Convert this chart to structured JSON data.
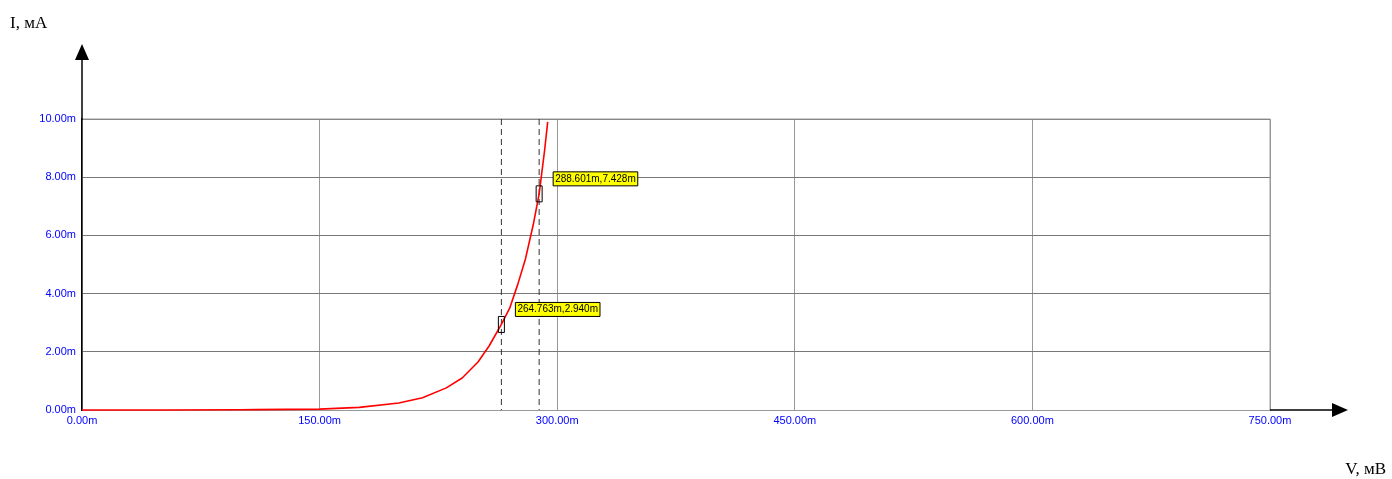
{
  "chart_data": {
    "type": "line",
    "xlabel": "V, мВ",
    "ylabel": "I, мА",
    "x": [
      0,
      50,
      100,
      150,
      175,
      200,
      215,
      230,
      240,
      250,
      257,
      264.763,
      270,
      275,
      280,
      285,
      288.601,
      292,
      294
    ],
    "series": [
      {
        "color": "#ff0000",
        "values": [
          0,
          0,
          0.01,
          0.03,
          0.09,
          0.24,
          0.42,
          0.76,
          1.1,
          1.65,
          2.2,
          2.94,
          3.5,
          4.3,
          5.2,
          6.4,
          7.428,
          8.9,
          9.9
        ]
      }
    ],
    "xlim": [
      0,
      750
    ],
    "ylim": [
      0,
      10
    ],
    "xticks": [
      {
        "value": 0,
        "label": "0.00m"
      },
      {
        "value": 150,
        "label": "150.00m"
      },
      {
        "value": 300,
        "label": "300.00m"
      },
      {
        "value": 450,
        "label": "450.00m"
      },
      {
        "value": 600,
        "label": "600.00m"
      },
      {
        "value": 750,
        "label": "750.00m"
      }
    ],
    "yticks": [
      {
        "value": 0,
        "label": "0.00m"
      },
      {
        "value": 2,
        "label": "2.00m"
      },
      {
        "value": 4,
        "label": "4.00m"
      },
      {
        "value": 6,
        "label": "6.00m"
      },
      {
        "value": 8,
        "label": "8.00m"
      },
      {
        "value": 10,
        "label": "10.00m"
      }
    ],
    "ref_lines": [
      {
        "axis": "x",
        "value": 264.763,
        "line_style": "dashed",
        "color": "#333333"
      },
      {
        "axis": "x",
        "value": 288.601,
        "line_style": "dashed",
        "color": "#333333"
      }
    ],
    "annotations": [
      {
        "text": "264.763m,2.940m",
        "x": 264.763,
        "y": 2.94
      },
      {
        "text": "288.601m,7.428m",
        "x": 288.601,
        "y": 7.428
      }
    ],
    "grid": true,
    "legend": false,
    "marker": "none",
    "line_style": "solid"
  }
}
